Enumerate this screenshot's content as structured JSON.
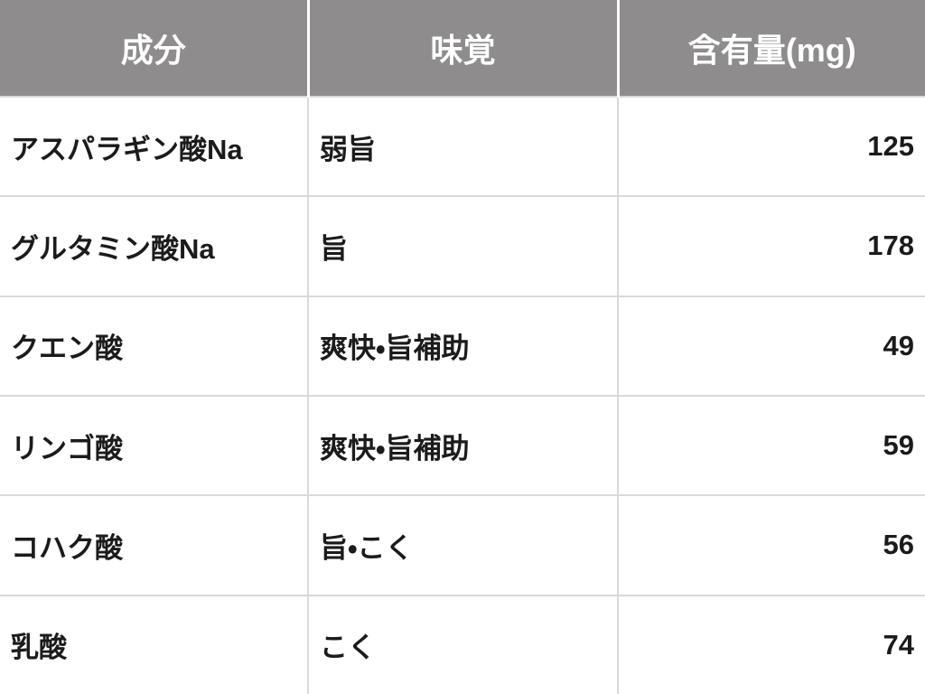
{
  "colors": {
    "header_bg": "#8e8c8c",
    "header_text": "#ffffff",
    "body_text": "#1b1b1b",
    "grid_line": "#d9d9d9"
  },
  "table": {
    "headers": {
      "component": "成分",
      "taste": "味覚",
      "amount": "含有量(mg)"
    },
    "rows": [
      {
        "component": "アスパラギン酸Na",
        "taste": "弱旨",
        "amount": "125"
      },
      {
        "component": "グルタミン酸Na",
        "taste": "旨",
        "amount": "178"
      },
      {
        "component": "クエン酸",
        "taste": "爽快・旨補助",
        "amount": "49"
      },
      {
        "component": "リンゴ酸",
        "taste": "爽快・旨補助",
        "amount": "59"
      },
      {
        "component": "コハク酸",
        "taste": "旨・こく",
        "amount": "56"
      },
      {
        "component": "乳酸",
        "taste": "こく",
        "amount": "74"
      }
    ]
  },
  "chart_data": {
    "type": "table",
    "title": "",
    "columns": [
      "成分",
      "味覚",
      "含有量(mg)"
    ],
    "rows": [
      [
        "アスパラギン酸Na",
        "弱旨",
        125
      ],
      [
        "グルタミン酸Na",
        "旨",
        178
      ],
      [
        "クエン酸",
        "爽快・旨補助",
        49
      ],
      [
        "リンゴ酸",
        "爽快・旨補助",
        59
      ],
      [
        "コハク酸",
        "旨・こく",
        56
      ],
      [
        "乳酸",
        "こく",
        74
      ]
    ],
    "units": "mg",
    "layout": {
      "header_background": "#8e8c8c",
      "grid": true,
      "amount_align": "right"
    }
  }
}
